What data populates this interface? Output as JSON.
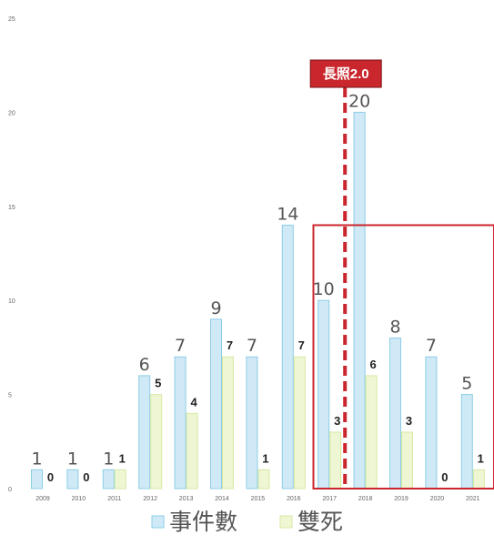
{
  "chart_data": {
    "type": "bar",
    "categories": [
      "2009",
      "2010",
      "2011",
      "2012",
      "2013",
      "2014",
      "2015",
      "2016",
      "2017",
      "2018",
      "2019",
      "2020",
      "2021"
    ],
    "series": [
      {
        "name": "事件數",
        "values": [
          1,
          1,
          1,
          6,
          7,
          9,
          7,
          14,
          10,
          20,
          8,
          7,
          5
        ],
        "color": "#cfeaf6",
        "stroke": "#8ccde6"
      },
      {
        "name": "雙死",
        "values": [
          0,
          0,
          1,
          5,
          4,
          7,
          1,
          7,
          3,
          6,
          3,
          0,
          1
        ],
        "color": "#eef6d3",
        "stroke": "#d6e9a3"
      }
    ],
    "ylim": [
      0,
      25
    ],
    "yticks": [
      "0",
      "5",
      "10",
      "15",
      "20",
      "25"
    ],
    "legend_position": "bottom",
    "annotation": {
      "text": "長照2.0",
      "at_category": "2017",
      "color": "#c9272d",
      "highlight_from": "2017",
      "highlight_to": "2021"
    }
  }
}
